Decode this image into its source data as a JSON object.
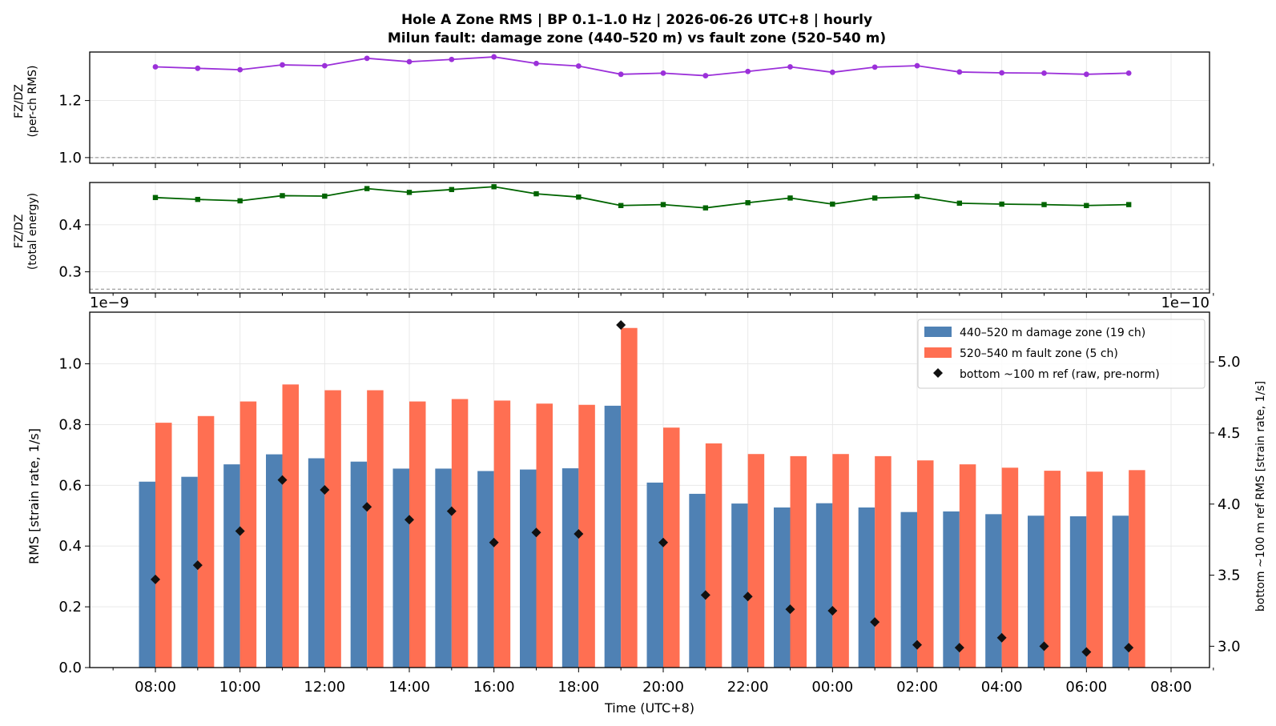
{
  "chart_data": [
    {
      "type": "line",
      "panel": "ratio-rms",
      "title": "Hole A Zone RMS  |  BP 0.1–1.0 Hz  |  2026-06-26 UTC+8  |  hourly",
      "subtitle": "Milun fault: damage zone (440–520 m) vs fault zone (520–540 m)",
      "ylabel": "FZ/DZ\n(per-ch RMS)",
      "ylim": [
        0.98,
        1.37
      ],
      "yticks": [
        1.0,
        1.2
      ],
      "ytick_labels": [
        "1.0",
        "1.2"
      ],
      "reference_line": 1.0,
      "color": "#9b30d9",
      "marker": "circle",
      "values": [
        1.318,
        1.313,
        1.308,
        1.325,
        1.322,
        1.348,
        1.336,
        1.344,
        1.353,
        1.33,
        1.321,
        1.292,
        1.296,
        1.287,
        1.302,
        1.318,
        1.299,
        1.317,
        1.322,
        1.3,
        1.297,
        1.296,
        1.292,
        1.296
      ],
      "grid": true
    },
    {
      "type": "line",
      "panel": "ratio-energy",
      "ylabel": "FZ/DZ\n(total energy)",
      "ylim": [
        0.255,
        0.49
      ],
      "yticks": [
        0.3,
        0.4
      ],
      "ytick_labels": [
        "0.3",
        "0.4"
      ],
      "reference_line": 0.263,
      "color": "#006400",
      "marker": "square",
      "values": [
        0.458,
        0.454,
        0.451,
        0.462,
        0.461,
        0.477,
        0.469,
        0.475,
        0.481,
        0.466,
        0.459,
        0.441,
        0.443,
        0.436,
        0.447,
        0.457,
        0.444,
        0.457,
        0.46,
        0.446,
        0.444,
        0.443,
        0.441,
        0.443
      ],
      "grid": true
    },
    {
      "type": "bar",
      "panel": "rms",
      "categories": [
        "08:00",
        "09:00",
        "10:00",
        "11:00",
        "12:00",
        "13:00",
        "14:00",
        "15:00",
        "16:00",
        "17:00",
        "18:00",
        "19:00",
        "20:00",
        "21:00",
        "22:00",
        "23:00",
        "00:00",
        "01:00",
        "02:00",
        "03:00",
        "04:00",
        "05:00",
        "06:00",
        "07:00"
      ],
      "x_tick_labels": [
        "08:00",
        "10:00",
        "12:00",
        "14:00",
        "16:00",
        "18:00",
        "20:00",
        "22:00",
        "00:00",
        "02:00",
        "04:00",
        "06:00",
        "08:00"
      ],
      "xlabel": "Time (UTC+8)",
      "ylabel": "RMS  [strain rate, 1/s]",
      "y_offset_label": "1e−9",
      "ylim": [
        0,
        1.17
      ],
      "yticks": [
        0.0,
        0.2,
        0.4,
        0.6,
        0.8,
        1.0
      ],
      "ytick_labels": [
        "0.0",
        "0.2",
        "0.4",
        "0.6",
        "0.8",
        "1.0"
      ],
      "series": [
        {
          "name": "440–520 m  damage zone (19 ch)",
          "color": "#4f81b4",
          "values": [
            0.612,
            0.628,
            0.669,
            0.702,
            0.689,
            0.678,
            0.655,
            0.655,
            0.647,
            0.652,
            0.656,
            0.862,
            0.609,
            0.572,
            0.54,
            0.527,
            0.541,
            0.527,
            0.512,
            0.514,
            0.505,
            0.5,
            0.498,
            0.5
          ]
        },
        {
          "name": "520–540 m  fault zone (5 ch)",
          "color": "#ff6f52",
          "values": [
            0.806,
            0.828,
            0.876,
            0.932,
            0.913,
            0.913,
            0.876,
            0.884,
            0.879,
            0.869,
            0.865,
            1.118,
            0.79,
            0.738,
            0.703,
            0.696,
            0.703,
            0.696,
            0.682,
            0.669,
            0.658,
            0.648,
            0.645,
            0.65
          ]
        },
        {
          "name": "bottom ~100 m ref (raw, pre-norm)",
          "axis": "right",
          "color": "#111111",
          "marker": "diamond",
          "values": [
            3.47,
            3.57,
            3.81,
            4.17,
            4.1,
            3.98,
            3.89,
            3.95,
            3.73,
            3.8,
            3.79,
            5.26,
            3.73,
            3.36,
            3.35,
            3.26,
            3.25,
            3.17,
            3.01,
            2.99,
            3.06,
            3.0,
            2.96,
            2.99
          ]
        }
      ],
      "right_axis": {
        "label": "bottom ~100 m ref RMS  [strain rate, 1/s]",
        "offset_label": "1e−10",
        "ylim": [
          2.85,
          5.35
        ],
        "yticks": [
          3.0,
          3.5,
          4.0,
          4.5,
          5.0
        ],
        "ytick_labels": [
          "3.0",
          "3.5",
          "4.0",
          "4.5",
          "5.0"
        ]
      },
      "legend": "top-right",
      "grid": true
    }
  ]
}
